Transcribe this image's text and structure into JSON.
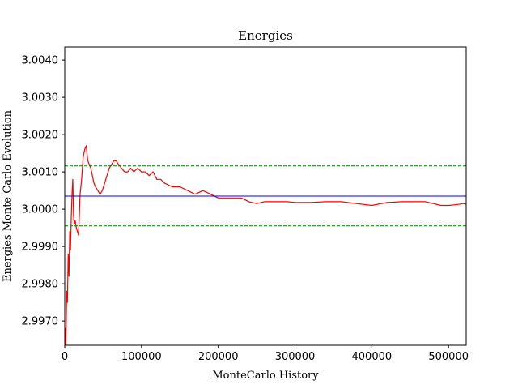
{
  "chart_data": {
    "type": "line",
    "title": "Energies",
    "xlabel": "MonteCarlo History",
    "ylabel": "Energies Monte Carlo Evolution",
    "xlim": [
      0,
      523000
    ],
    "ylim": [
      2.99635,
      3.00435
    ],
    "x_ticks": [
      0,
      100000,
      200000,
      300000,
      400000,
      500000
    ],
    "y_ticks": [
      2.997,
      2.998,
      2.999,
      3.0,
      3.001,
      3.002,
      3.003,
      3.004
    ],
    "x_tick_labels": [
      "0",
      "100000",
      "200000",
      "300000",
      "400000",
      "500000"
    ],
    "y_tick_labels": [
      "2.9970",
      "2.9980",
      "2.9990",
      "3.0000",
      "3.0010",
      "3.0020",
      "3.0030",
      "3.0040"
    ],
    "grid": false,
    "reference_lines": [
      {
        "style": "solid",
        "color": "#0000ff",
        "y": 3.00035
      },
      {
        "style": "dashed",
        "color": "#008000",
        "y": 3.00116
      },
      {
        "style": "dashed",
        "color": "#008000",
        "y": 2.99955
      }
    ],
    "series": [
      {
        "color": "#ff0000",
        "x": [
          0,
          800,
          1500,
          2500,
          3500,
          4500,
          5500,
          6500,
          7500,
          8500,
          9500,
          10500,
          11500,
          12500,
          13500,
          15000,
          16500,
          18000,
          20000,
          22000,
          24000,
          26000,
          28000,
          30000,
          32000,
          34000,
          36000,
          38000,
          40000,
          43000,
          46000,
          49000,
          52000,
          55000,
          58000,
          61000,
          64000,
          67000,
          70000,
          74000,
          78000,
          82000,
          86000,
          90000,
          95000,
          100000,
          105000,
          110000,
          115000,
          120000,
          125000,
          130000,
          140000,
          150000,
          160000,
          170000,
          180000,
          190000,
          200000,
          210000,
          220000,
          230000,
          240000,
          250000,
          260000,
          270000,
          280000,
          290000,
          300000,
          320000,
          340000,
          360000,
          380000,
          400000,
          420000,
          440000,
          460000,
          470000,
          480000,
          490000,
          500000,
          510000,
          520000,
          523000
        ],
        "values": [
          2.9965,
          2.9968,
          2.9962,
          2.9978,
          2.9975,
          2.9988,
          2.9982,
          2.9994,
          2.9989,
          2.9998,
          3.0004,
          3.0008,
          2.9998,
          2.9996,
          2.9997,
          2.9995,
          2.9994,
          2.9993,
          3.0004,
          3.0008,
          3.0014,
          3.0016,
          3.0017,
          3.0013,
          3.0012,
          3.0011,
          3.0009,
          3.0007,
          3.0006,
          3.0005,
          3.0004,
          3.0005,
          3.0007,
          3.0009,
          3.0011,
          3.0012,
          3.0013,
          3.0013,
          3.0012,
          3.0011,
          3.001,
          3.001,
          3.0011,
          3.001,
          3.0011,
          3.001,
          3.001,
          3.0009,
          3.001,
          3.0008,
          3.0008,
          3.0007,
          3.0006,
          3.0006,
          3.0005,
          3.0004,
          3.0005,
          3.0004,
          3.0003,
          3.0003,
          3.0003,
          3.0003,
          3.0002,
          3.00015,
          3.0002,
          3.0002,
          3.0002,
          3.0002,
          3.00018,
          3.00018,
          3.0002,
          3.0002,
          3.00015,
          3.0001,
          3.00018,
          3.0002,
          3.0002,
          3.0002,
          3.00015,
          3.0001,
          3.0001,
          3.00012,
          3.00015,
          3.00013
        ]
      }
    ]
  }
}
